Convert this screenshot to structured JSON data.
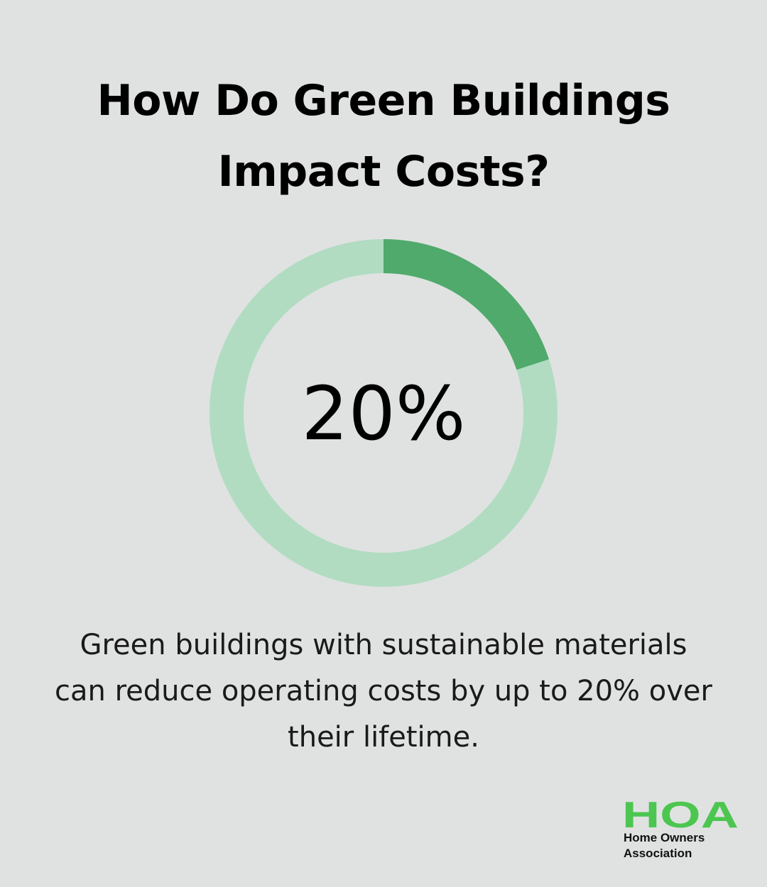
{
  "title_lines": [
    "How Do Green Buildings",
    "Impact Costs?"
  ],
  "chart_data": {
    "type": "pie",
    "variant": "donut",
    "value_percent": 20,
    "center_label": "20%",
    "colors": {
      "value": "#4faa6c",
      "remainder": "#b1dcc2"
    }
  },
  "caption_lines": [
    "Green buildings with sustainable materials",
    "can reduce operating costs by up to 20% over",
    "their lifetime."
  ],
  "logo": {
    "mark": "HOA",
    "line1": "Home Owners",
    "line2": "Association",
    "color": "#4cc650"
  }
}
